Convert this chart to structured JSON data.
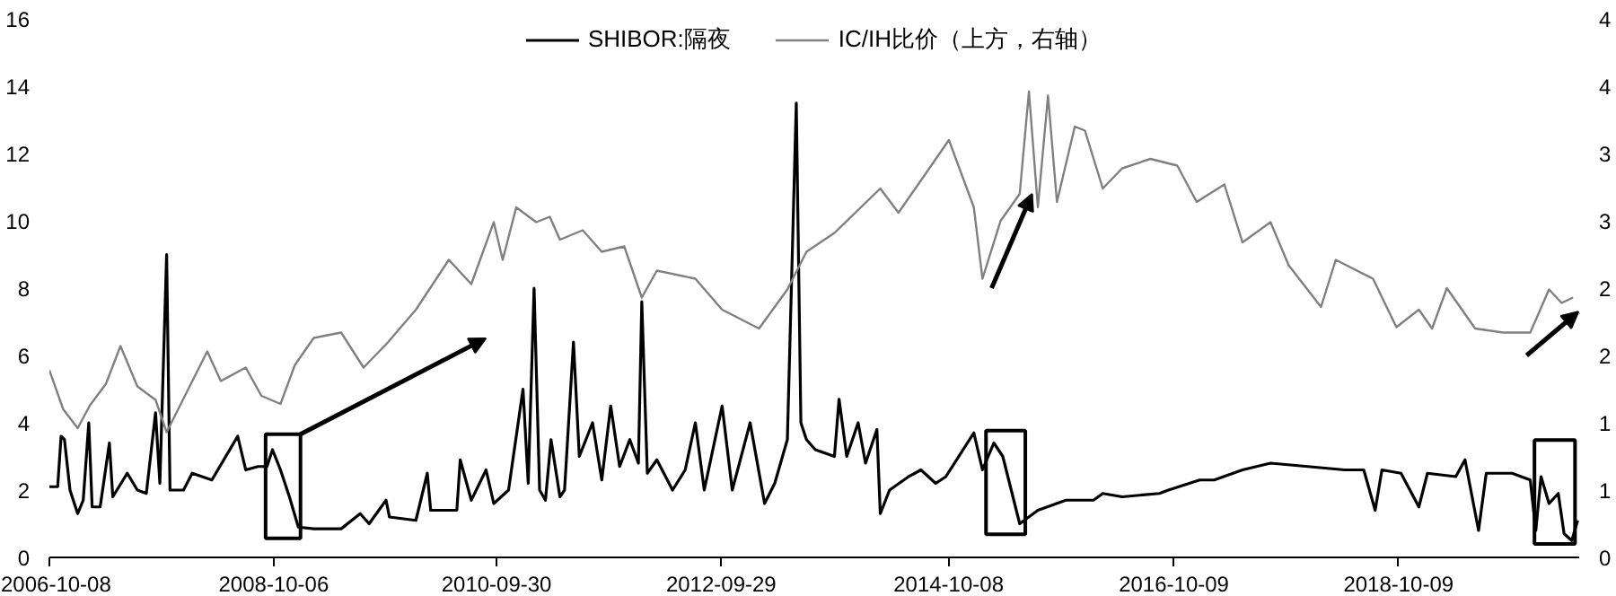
{
  "chart_data": {
    "type": "line",
    "legend": "top",
    "grid": false,
    "marker": "none",
    "line_style": "solid",
    "xlim": [
      "2006-10-08",
      "2020-05-18"
    ],
    "xticks": [
      "2006-10-08",
      "2008-10-06",
      "2010-09-30",
      "2012-09-29",
      "2014-10-08",
      "2016-10-09",
      "2018-10-09"
    ],
    "ylim": [
      0,
      16
    ],
    "yticks": [
      0,
      2,
      4,
      6,
      8,
      10,
      12,
      14,
      16
    ],
    "y2lim": [
      0,
      4
    ],
    "y2ticks": [
      {
        "value": 0,
        "label": "0"
      },
      {
        "value": 0.5,
        "label": "1"
      },
      {
        "value": 1,
        "label": "1"
      },
      {
        "value": 1.5,
        "label": "2"
      },
      {
        "value": 2,
        "label": "2"
      },
      {
        "value": 2.5,
        "label": "3"
      },
      {
        "value": 3,
        "label": "3"
      },
      {
        "value": 3.5,
        "label": "4"
      },
      {
        "value": 4,
        "label": "4"
      }
    ],
    "series": [
      {
        "name": "SHIBOR:隔夜",
        "color": "#000000",
        "x": [
          "2006-10-08",
          "2006-11-04",
          "2006-11-15",
          "2006-11-26",
          "2006-12-14",
          "2007-01-08",
          "2007-01-26",
          "2007-02-13",
          "2007-02-24",
          "2007-03-22",
          "2007-04-21",
          "2007-05-02",
          "2007-06-18",
          "2007-07-21",
          "2007-08-19",
          "2007-09-18",
          "2007-10-02",
          "2007-10-24",
          "2007-11-04",
          "2007-12-18",
          "2008-01-15",
          "2008-03-19",
          "2008-06-11",
          "2008-07-07",
          "2008-08-16",
          "2008-09-14",
          "2008-10-02",
          "2008-10-28",
          "2008-11-26",
          "2008-12-25",
          "2009-02-13",
          "2009-05-13",
          "2009-07-14",
          "2009-08-12",
          "2009-10-06",
          "2009-10-17",
          "2010-01-11",
          "2010-02-17",
          "2010-02-28",
          "2010-05-24",
          "2010-06-04",
          "2010-07-10",
          "2010-08-27",
          "2010-09-21",
          "2010-11-08",
          "2010-12-25",
          "2011-01-11",
          "2011-01-30",
          "2011-02-17",
          "2011-03-08",
          "2011-03-26",
          "2011-04-24",
          "2011-05-09",
          "2011-06-07",
          "2011-06-26",
          "2011-08-08",
          "2011-09-07",
          "2011-10-06",
          "2011-11-04",
          "2011-12-07",
          "2012-01-04",
          "2012-01-15",
          "2012-02-02",
          "2012-03-04",
          "2012-04-24",
          "2012-06-04",
          "2012-07-07",
          "2012-08-05",
          "2012-10-02",
          "2012-11-04",
          "2013-01-01",
          "2013-02-17",
          "2013-03-22",
          "2013-05-02",
          "2013-05-31",
          "2013-06-15",
          "2013-07-03",
          "2013-08-01",
          "2013-10-02",
          "2013-10-17",
          "2013-11-11",
          "2013-12-18",
          "2014-01-11",
          "2014-02-17",
          "2014-02-28",
          "2014-03-30",
          "2014-05-31",
          "2014-07-10",
          "2014-08-27",
          "2014-09-29",
          "2014-12-29",
          "2015-01-26",
          "2015-03-04",
          "2015-04-02",
          "2015-05-27",
          "2015-07-25",
          "2015-10-24",
          "2016-01-22",
          "2016-02-21",
          "2016-04-24",
          "2016-08-23",
          "2016-09-21",
          "2017-01-01",
          "2017-02-17",
          "2017-05-20",
          "2017-08-19",
          "2017-12-18",
          "2018-04-17",
          "2018-06-18",
          "2018-07-25",
          "2018-08-16",
          "2018-10-17",
          "2018-12-14",
          "2019-01-11",
          "2019-04-13",
          "2019-05-13",
          "2019-06-26",
          "2019-07-21",
          "2019-10-13",
          "2019-12-11",
          "2019-12-29",
          "2020-01-15",
          "2020-02-10",
          "2020-03-11",
          "2020-03-30",
          "2020-04-24",
          "2020-05-13"
        ],
        "values": [
          2.1,
          2.1,
          3.6,
          3.5,
          2.0,
          1.3,
          1.7,
          4.0,
          1.5,
          1.5,
          3.4,
          1.8,
          2.5,
          2.0,
          1.9,
          4.3,
          2.2,
          9.0,
          2.0,
          2.0,
          2.5,
          2.3,
          3.6,
          2.6,
          2.7,
          2.7,
          3.2,
          2.6,
          1.8,
          0.9,
          0.85,
          0.85,
          1.3,
          1.0,
          1.7,
          1.2,
          1.1,
          2.5,
          1.4,
          1.4,
          2.9,
          1.7,
          2.6,
          1.6,
          2.0,
          5.0,
          2.2,
          8.0,
          2.0,
          1.7,
          3.5,
          1.8,
          2.0,
          6.4,
          3.0,
          4.0,
          2.3,
          4.5,
          2.7,
          3.5,
          2.8,
          7.6,
          2.5,
          2.9,
          2.0,
          2.6,
          4.0,
          2.0,
          4.5,
          2.0,
          4.0,
          1.6,
          2.2,
          3.5,
          13.5,
          4.0,
          3.5,
          3.2,
          3.0,
          4.7,
          3.0,
          4.0,
          2.8,
          3.8,
          1.3,
          2.0,
          2.4,
          2.6,
          2.2,
          2.4,
          3.7,
          2.6,
          3.4,
          3.0,
          1.0,
          1.4,
          1.7,
          1.7,
          1.9,
          1.8,
          1.9,
          2.0,
          2.3,
          2.3,
          2.6,
          2.8,
          2.7,
          2.6,
          2.6,
          1.4,
          2.6,
          2.5,
          1.5,
          2.5,
          2.4,
          2.9,
          0.8,
          2.5,
          2.5,
          2.3,
          0.8,
          2.4,
          1.6,
          1.9,
          0.7,
          0.5,
          1.1
        ]
      },
      {
        "name": "IC/IH比价（上方，右轴）",
        "color": "#808080",
        "axis": "y2",
        "x": [
          "2006-10-08",
          "2006-11-22",
          "2007-01-08",
          "2007-02-17",
          "2007-04-10",
          "2007-05-27",
          "2007-07-21",
          "2007-09-18",
          "2007-10-24",
          "2007-12-07",
          "2008-03-04",
          "2008-04-17",
          "2008-07-07",
          "2008-08-27",
          "2008-10-28",
          "2008-12-14",
          "2009-02-13",
          "2009-05-13",
          "2009-07-25",
          "2009-10-13",
          "2010-01-11",
          "2010-04-28",
          "2010-07-10",
          "2010-09-21",
          "2010-10-20",
          "2010-12-03",
          "2011-02-06",
          "2011-03-22",
          "2011-04-24",
          "2011-07-07",
          "2011-09-07",
          "2011-11-19",
          "2012-01-15",
          "2012-03-04",
          "2012-07-07",
          "2012-10-02",
          "2013-01-30",
          "2013-05-02",
          "2013-07-03",
          "2013-10-02",
          "2014-02-28",
          "2014-04-28",
          "2014-10-09",
          "2014-12-29",
          "2015-01-26",
          "2015-03-26",
          "2015-05-27",
          "2015-06-26",
          "2015-07-25",
          "2015-08-27",
          "2015-09-25",
          "2015-11-22",
          "2015-12-25",
          "2016-02-21",
          "2016-04-24",
          "2016-07-25",
          "2016-10-20",
          "2016-12-22",
          "2017-03-22",
          "2017-05-20",
          "2017-08-19",
          "2017-10-17",
          "2018-01-30",
          "2018-03-19",
          "2018-07-18",
          "2018-10-02",
          "2018-12-14",
          "2019-01-26",
          "2019-03-15",
          "2019-06-15",
          "2019-09-14",
          "2019-12-11",
          "2020-02-10",
          "2020-03-22",
          "2020-04-28"
        ],
        "values": [
          1.39,
          1.1,
          0.96,
          1.13,
          1.29,
          1.57,
          1.27,
          1.17,
          0.93,
          1.13,
          1.53,
          1.31,
          1.41,
          1.2,
          1.14,
          1.43,
          1.63,
          1.67,
          1.41,
          1.6,
          1.84,
          2.21,
          2.03,
          2.49,
          2.21,
          2.6,
          2.49,
          2.53,
          2.36,
          2.43,
          2.27,
          2.31,
          1.93,
          2.13,
          2.07,
          1.84,
          1.7,
          1.99,
          2.27,
          2.41,
          2.74,
          2.56,
          3.1,
          2.6,
          2.07,
          2.5,
          2.7,
          3.46,
          2.6,
          3.43,
          2.64,
          3.2,
          3.17,
          2.74,
          2.89,
          2.96,
          2.91,
          2.64,
          2.77,
          2.34,
          2.49,
          2.17,
          1.86,
          2.21,
          2.07,
          1.71,
          1.84,
          1.7,
          2.0,
          1.7,
          1.67,
          1.67,
          1.99,
          1.89,
          1.93
        ]
      }
    ]
  }
}
